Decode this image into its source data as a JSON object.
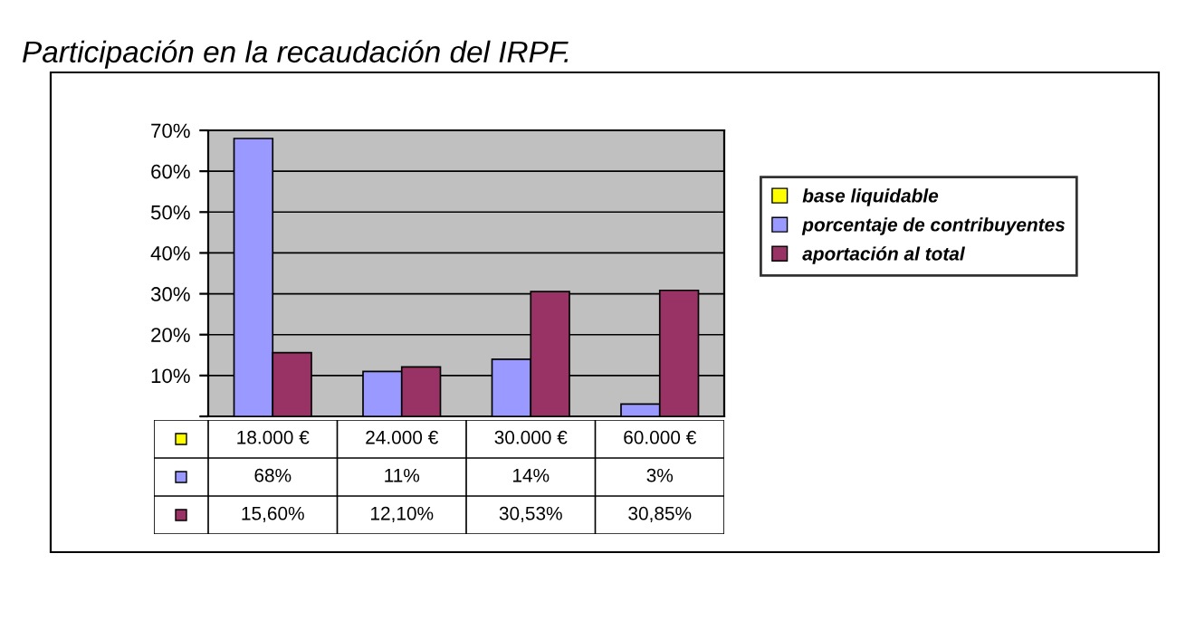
{
  "chart_data": {
    "type": "bar",
    "title": "Participación en la recaudación del IRPF.",
    "categories": [
      "18.000 €",
      "24.000 €",
      "30.000 €",
      "60.000 €"
    ],
    "series": [
      {
        "name": "base liquidable",
        "color": "#ffff00",
        "values": [
          null,
          null,
          null,
          null
        ]
      },
      {
        "name": "porcentaje de contribuyentes",
        "color": "#9999ff",
        "values": [
          68,
          11,
          14,
          3
        ],
        "value_labels": [
          "68%",
          "11%",
          "14%",
          "3%"
        ]
      },
      {
        "name": "aportación al total",
        "color": "#993366",
        "values": [
          15.6,
          12.1,
          30.53,
          30.85
        ],
        "value_labels": [
          "15,60%",
          "12,10%",
          "30,53%",
          "30,85%"
        ]
      }
    ],
    "ylim": [
      0,
      70
    ],
    "yticks": [
      {
        "value": 0,
        "label": null
      },
      {
        "value": 10,
        "label": "10%"
      },
      {
        "value": 20,
        "label": "20%"
      },
      {
        "value": 30,
        "label": "30%"
      },
      {
        "value": 40,
        "label": "40%"
      },
      {
        "value": 50,
        "label": "50%"
      },
      {
        "value": 60,
        "label": "60%"
      },
      {
        "value": 70,
        "label": "70%"
      }
    ],
    "grid": "y",
    "legend": "right"
  }
}
